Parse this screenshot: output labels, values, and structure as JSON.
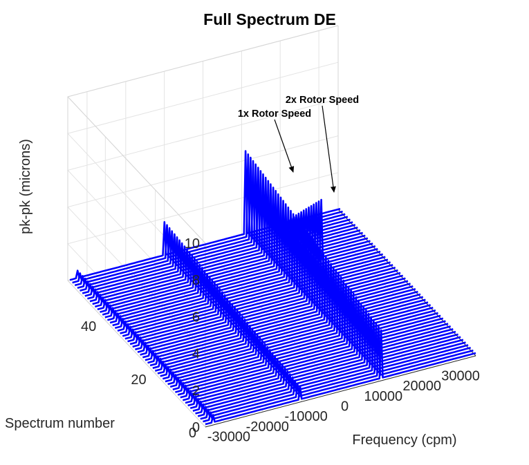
{
  "chart_data": {
    "type": "waterfall-3d",
    "title": "Full Spectrum DE",
    "xlabel": "Frequency (cpm)",
    "ylabel": "Spectrum number",
    "zlabel": "pk-pk (microns)",
    "xlim": [
      -35000,
      35000
    ],
    "ylim": [
      0,
      55
    ],
    "zlim": [
      0,
      10
    ],
    "x_ticks": [
      -30000,
      -20000,
      -10000,
      0,
      10000,
      20000,
      30000
    ],
    "x_tick_labels": [
      "-30000",
      "-20000",
      "-10000",
      "0",
      "10000",
      "20000",
      "30000"
    ],
    "y_ticks": [
      0,
      20,
      40
    ],
    "y_tick_labels": [
      "0",
      "20",
      "40"
    ],
    "z_ticks": [
      0,
      2,
      4,
      6,
      8,
      10
    ],
    "z_tick_labels": [
      "0",
      "2",
      "4",
      "6",
      "8",
      "10"
    ],
    "series_count": 55,
    "series_color": "#0000ff",
    "baseline": 0.15,
    "peaks": [
      {
        "name": "-1x component",
        "freq": -10500,
        "start": 0.7,
        "end": 1.8,
        "start_row": 0
      },
      {
        "name": "1x component",
        "freq": 10500,
        "start": 2.6,
        "end": 4.5,
        "start_row": 0
      },
      {
        "name": "2x component",
        "freq": 21000,
        "start": 3.3,
        "end": 0.1,
        "start_row": 40
      },
      {
        "name": "edge component",
        "freq": -33000,
        "start": 0.4,
        "end": 0.4,
        "start_row": 0
      }
    ],
    "annotations": [
      {
        "text": "1x Rotor Speed"
      },
      {
        "text": "2x Rotor Speed"
      }
    ]
  }
}
